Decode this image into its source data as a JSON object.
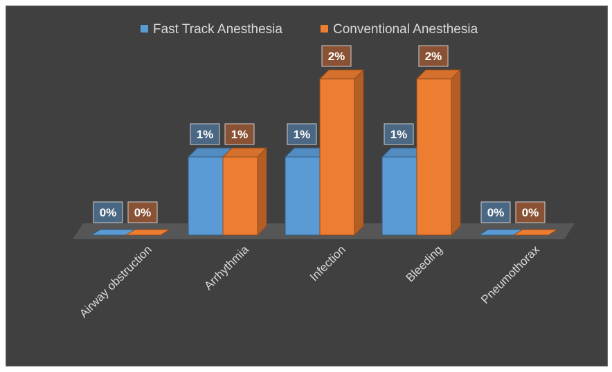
{
  "chart_data": {
    "type": "bar",
    "style": "3d-clustered-column",
    "categories": [
      "Airway obstruction",
      "Arrhythmia",
      "Infection",
      "Bleeding",
      "Pneumothorax"
    ],
    "series": [
      {
        "name": "Fast Track Anesthesia",
        "values": [
          0,
          1,
          1,
          1,
          0
        ],
        "labels": [
          "0%",
          "1%",
          "1%",
          "1%",
          "0%"
        ],
        "color": "#5b9bd5"
      },
      {
        "name": "Conventional Anesthesia",
        "values": [
          0,
          1,
          2,
          2,
          0
        ],
        "labels": [
          "0%",
          "1%",
          "2%",
          "2%",
          "0%"
        ],
        "color": "#ed7d31"
      }
    ],
    "ylim": [
      0,
      2
    ],
    "grid": false,
    "legend": "top",
    "background": "#404040"
  }
}
